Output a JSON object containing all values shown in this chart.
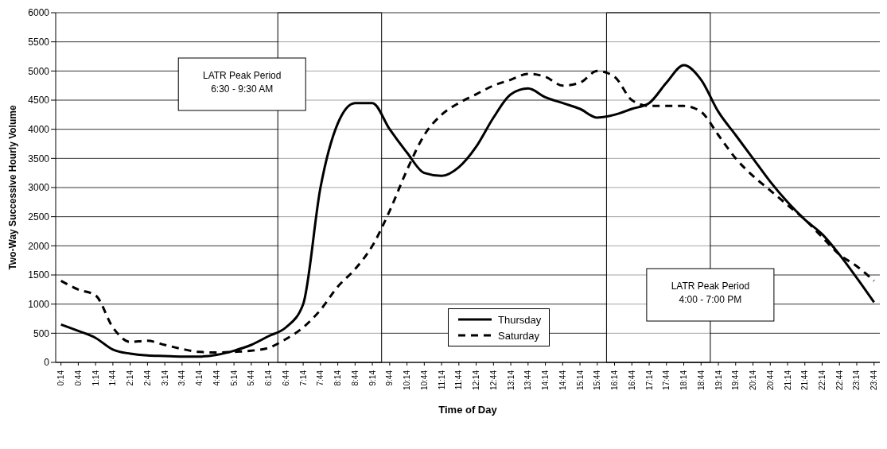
{
  "chart_data": {
    "type": "line",
    "xlabel": "Time of Day",
    "ylabel": "Two-Way Successive Hourly Volume",
    "x": [
      0.233,
      0.733,
      1.233,
      1.733,
      2.233,
      2.733,
      3.233,
      3.733,
      4.233,
      4.733,
      5.233,
      5.733,
      6.233,
      6.733,
      7.233,
      7.733,
      8.233,
      8.733,
      9.233,
      9.733,
      10.233,
      10.733,
      11.233,
      11.733,
      12.233,
      12.733,
      13.233,
      13.733,
      14.233,
      14.733,
      15.233,
      15.733,
      16.233,
      16.733,
      17.233,
      17.733,
      18.233,
      18.733,
      19.233,
      19.733,
      20.233,
      20.733,
      21.233,
      21.733,
      22.233,
      22.733,
      23.233,
      23.733
    ],
    "series": [
      {
        "name": "Thursday",
        "color": "#000000",
        "line_style": "solid",
        "values": [
          650,
          540,
          420,
          220,
          150,
          120,
          110,
          100,
          100,
          130,
          200,
          300,
          450,
          600,
          1000,
          3000,
          4100,
          4450,
          4450,
          4000,
          3600,
          3250,
          3200,
          3350,
          3700,
          4200,
          4600,
          4700,
          4550,
          4450,
          4350,
          4200,
          4250,
          4350,
          4450,
          4800,
          5100,
          4850,
          4300,
          3900,
          3500,
          3100,
          2750,
          2450,
          2200,
          1850,
          1450,
          1030
        ]
      },
      {
        "name": "Saturday",
        "color": "#000000",
        "line_style": "dashed",
        "values": [
          1400,
          1250,
          1150,
          600,
          350,
          370,
          300,
          230,
          180,
          170,
          180,
          200,
          250,
          400,
          600,
          900,
          1300,
          1600,
          2000,
          2600,
          3300,
          3900,
          4250,
          4450,
          4600,
          4750,
          4850,
          4950,
          4900,
          4750,
          4800,
          5000,
          4900,
          4500,
          4400,
          4400,
          4400,
          4300,
          3900,
          3500,
          3200,
          2950,
          2700,
          2450,
          2150,
          1850,
          1650,
          1400
        ]
      }
    ],
    "xlim": [
      0.08,
      23.9
    ],
    "xticks": [
      {
        "value": 0.233,
        "label": "0:14"
      },
      {
        "value": 0.733,
        "label": "0:44"
      },
      {
        "value": 1.233,
        "label": "1:14"
      },
      {
        "value": 1.733,
        "label": "1:44"
      },
      {
        "value": 2.233,
        "label": "2:14"
      },
      {
        "value": 2.733,
        "label": "2:44"
      },
      {
        "value": 3.233,
        "label": "3:14"
      },
      {
        "value": 3.733,
        "label": "3:44"
      },
      {
        "value": 4.233,
        "label": "4:14"
      },
      {
        "value": 4.733,
        "label": "4:44"
      },
      {
        "value": 5.233,
        "label": "5:14"
      },
      {
        "value": 5.733,
        "label": "5:44"
      },
      {
        "value": 6.233,
        "label": "6:14"
      },
      {
        "value": 6.733,
        "label": "6:44"
      },
      {
        "value": 7.233,
        "label": "7:14"
      },
      {
        "value": 7.733,
        "label": "7:44"
      },
      {
        "value": 8.233,
        "label": "8:14"
      },
      {
        "value": 8.733,
        "label": "8:44"
      },
      {
        "value": 9.233,
        "label": "9:14"
      },
      {
        "value": 9.733,
        "label": "9:44"
      },
      {
        "value": 10.233,
        "label": "10:14"
      },
      {
        "value": 10.733,
        "label": "10:44"
      },
      {
        "value": 11.233,
        "label": "11:14"
      },
      {
        "value": 11.733,
        "label": "11:44"
      },
      {
        "value": 12.233,
        "label": "12:14"
      },
      {
        "value": 12.733,
        "label": "12:44"
      },
      {
        "value": 13.233,
        "label": "13:14"
      },
      {
        "value": 13.733,
        "label": "13:44"
      },
      {
        "value": 14.233,
        "label": "14:14"
      },
      {
        "value": 14.733,
        "label": "14:44"
      },
      {
        "value": 15.233,
        "label": "15:14"
      },
      {
        "value": 15.733,
        "label": "15:44"
      },
      {
        "value": 16.233,
        "label": "16:14"
      },
      {
        "value": 16.733,
        "label": "16:44"
      },
      {
        "value": 17.233,
        "label": "17:14"
      },
      {
        "value": 17.733,
        "label": "17:44"
      },
      {
        "value": 18.233,
        "label": "18:14"
      },
      {
        "value": 18.733,
        "label": "18:44"
      },
      {
        "value": 19.233,
        "label": "19:14"
      },
      {
        "value": 19.733,
        "label": "19:44"
      },
      {
        "value": 20.233,
        "label": "20:14"
      },
      {
        "value": 20.733,
        "label": "20:44"
      },
      {
        "value": 21.233,
        "label": "21:14"
      },
      {
        "value": 21.733,
        "label": "21:44"
      },
      {
        "value": 22.233,
        "label": "22:14"
      },
      {
        "value": 22.733,
        "label": "22:44"
      },
      {
        "value": 23.233,
        "label": "23:14"
      },
      {
        "value": 23.733,
        "label": "23:44"
      }
    ],
    "ylim": [
      0,
      6000
    ],
    "yticks": [
      0,
      500,
      1000,
      1500,
      2000,
      2500,
      3000,
      3500,
      4000,
      4500,
      5000,
      5500,
      6000
    ],
    "grid": "y",
    "legend": "bottom",
    "marker": "none",
    "bands": [
      {
        "axis": "x",
        "from": 6.5,
        "to": 9.5,
        "label": "LATR Peak Period\n6:30 - 9:30 AM",
        "color": "#ffffff"
      },
      {
        "axis": "x",
        "from": 16,
        "to": 19,
        "label": "LATR Peak Period\n4:00 - 7:00 PM",
        "color": "#ffffff"
      }
    ]
  }
}
